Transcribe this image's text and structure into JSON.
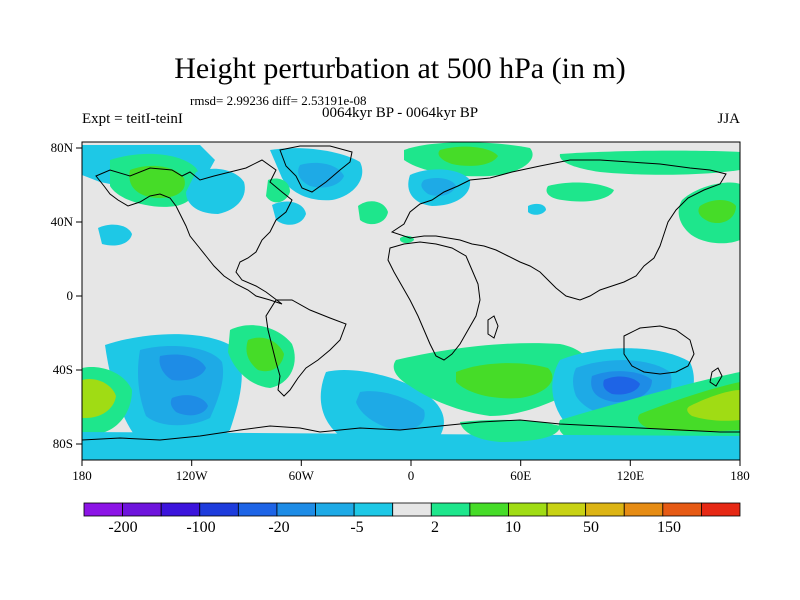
{
  "title": "Height perturbation at 500 hPa (in m)",
  "stats": "rmsd= 2.99236 diff= 2.53191e-08",
  "period": "0064kyr BP - 0064kyr BP",
  "experiment": "Expt = teitI-teinI",
  "season": "JJA",
  "map": {
    "background_color": "#e6e6e6",
    "lon_ticks": [
      "180",
      "120W",
      "60W",
      "0",
      "60E",
      "120E",
      "180"
    ],
    "lat_ticks": [
      "80N",
      "40N",
      "0",
      "40S",
      "80S"
    ]
  },
  "colorbar": {
    "colors": [
      "#8c14e6",
      "#6e14dc",
      "#3c14dc",
      "#1e3cdc",
      "#1e64e6",
      "#1e8ce6",
      "#1eaae6",
      "#1ec8e6",
      "#e6e6e6",
      "#1ee68c",
      "#46dc28",
      "#a0dc14",
      "#c8d214",
      "#dcb414",
      "#e68c14",
      "#e65a14",
      "#e62814"
    ],
    "labels": [
      "-200",
      "-100",
      "-20",
      "-5",
      "2",
      "10",
      "50",
      "150"
    ]
  },
  "legend_colors": {
    "light_blue": "#1ec8e6",
    "blue": "#1eaae6",
    "mid_blue": "#1e8ce6",
    "dark_blue": "#1e64e6",
    "teal_green": "#1ee68c",
    "green": "#46dc28",
    "yellow_green": "#a0dc14"
  }
}
